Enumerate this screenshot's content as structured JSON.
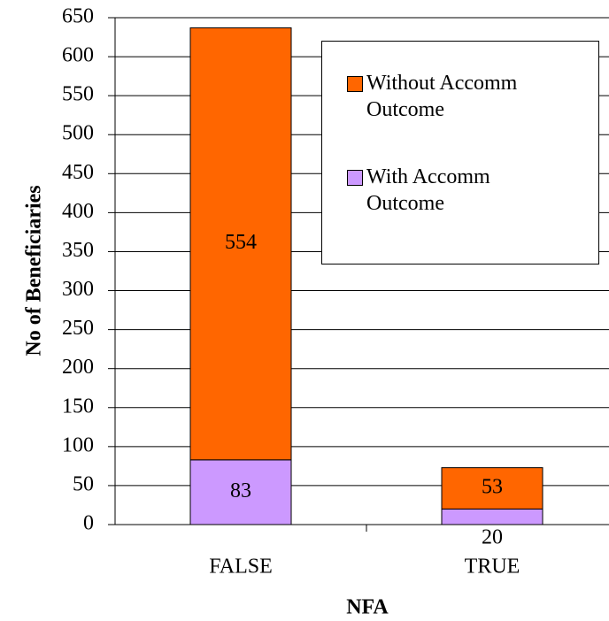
{
  "chart_data": {
    "type": "stacked_bar",
    "categories": [
      "FALSE",
      "TRUE"
    ],
    "series": [
      {
        "name": "With Accomm Outcome",
        "color": "#cc99ff",
        "values": [
          83,
          20
        ]
      },
      {
        "name": "Without Accomm Outcome",
        "color": "#ff6600",
        "values": [
          554,
          53
        ]
      }
    ],
    "ylim": [
      0,
      650
    ],
    "yticks": [
      0,
      50,
      100,
      150,
      200,
      250,
      300,
      350,
      400,
      450,
      500,
      550,
      600,
      650
    ],
    "grid": true,
    "legend": "top-right",
    "ylabel": "No of Beneficiaries",
    "xlabel": "NFA"
  }
}
